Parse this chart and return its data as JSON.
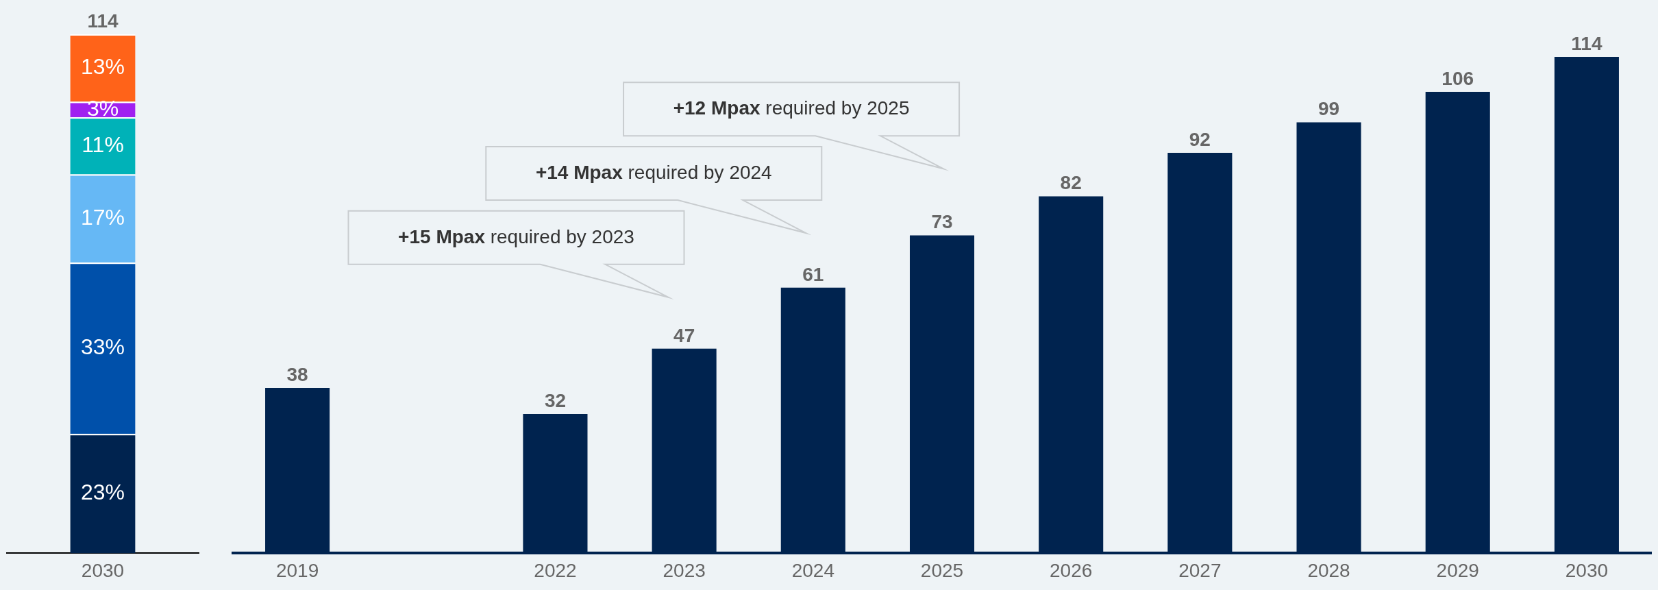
{
  "chart_data": [
    {
      "type": "bar",
      "stacked": true,
      "categories": [
        "2030"
      ],
      "tick_labels": "x",
      "annotations": [
        "114"
      ],
      "series": [
        {
          "color": "#00234f",
          "values": [
            23
          ],
          "value_labels": [
            "23%"
          ]
        },
        {
          "color": "#0050aa",
          "values": [
            33
          ],
          "value_labels": [
            "33%"
          ]
        },
        {
          "color": "#66b8f5",
          "values": [
            17
          ],
          "value_labels": [
            "17%"
          ]
        },
        {
          "color": "#00b2b8",
          "values": [
            11
          ],
          "value_labels": [
            "11%"
          ]
        },
        {
          "color": "#a020f0",
          "values": [
            3
          ],
          "value_labels": [
            "3%"
          ]
        },
        {
          "color": "#ff6319",
          "values": [
            13
          ],
          "value_labels": [
            "13%"
          ]
        }
      ]
    },
    {
      "type": "bar",
      "categories": [
        "2019",
        null,
        "2022",
        "2023",
        "2024",
        "2025",
        "2026",
        "2027",
        "2028",
        "2029",
        "2030"
      ],
      "values": [
        38,
        null,
        32,
        47,
        61,
        73,
        82,
        92,
        99,
        106,
        114
      ],
      "color": "#00234f",
      "data_labels": true,
      "tick_labels": "x",
      "annotations": [
        "+15 Mpax required by 2023",
        "+14 Mpax required by 2024",
        "+12 Mpax required by 2025"
      ]
    }
  ]
}
